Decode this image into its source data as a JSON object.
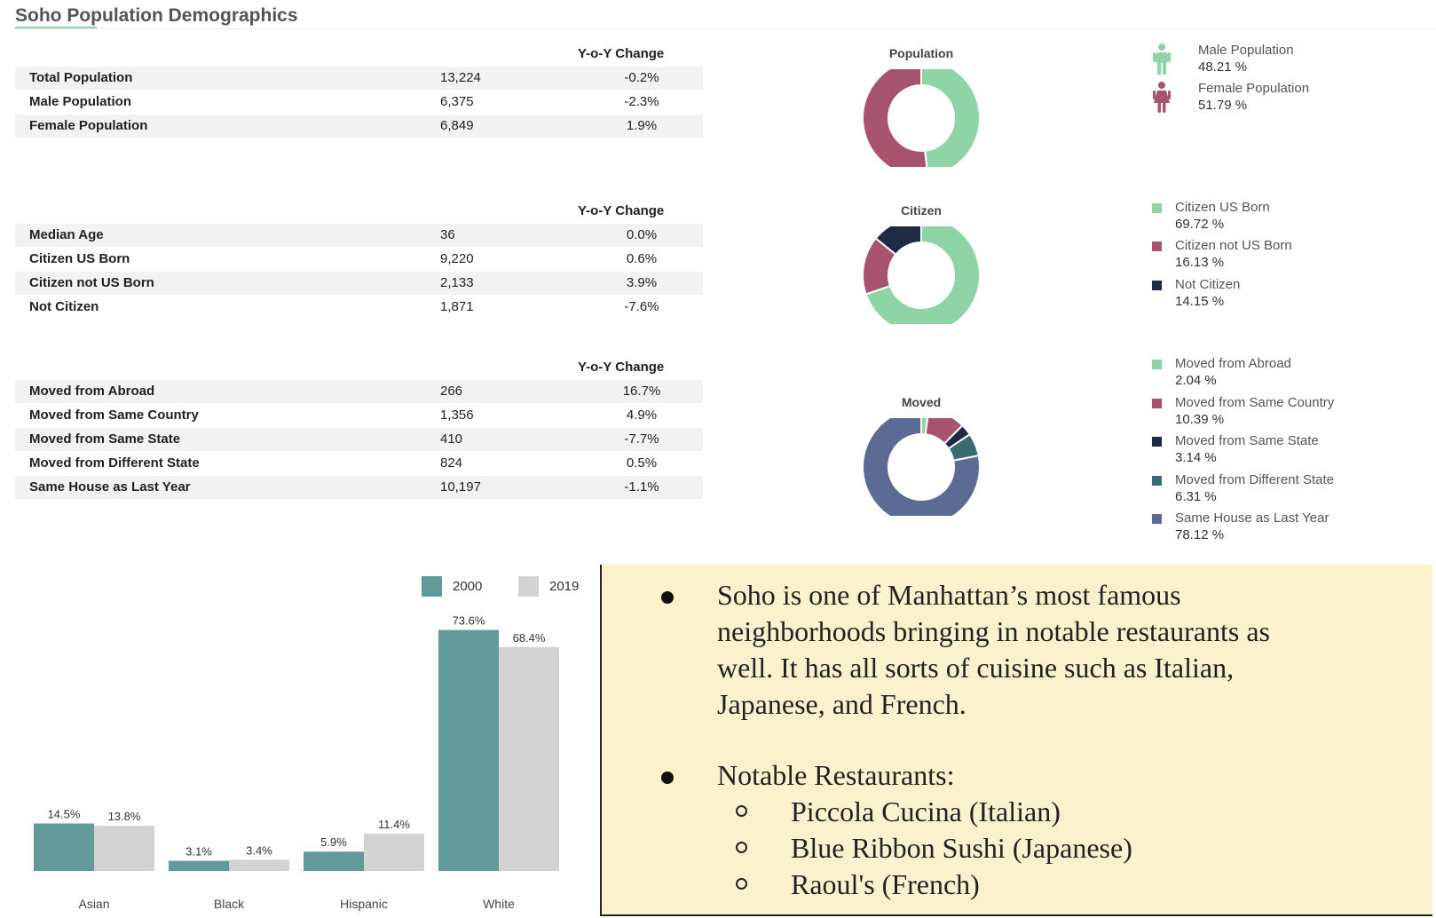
{
  "page_title": "Soho Population Demographics",
  "tables": [
    {
      "yoy_header": "Y-o-Y Change",
      "rows": [
        {
          "label": "Total Population",
          "value": "13,224",
          "change": "-0.2%"
        },
        {
          "label": "Male Population",
          "value": "6,375",
          "change": "-2.3%"
        },
        {
          "label": "Female Population",
          "value": "6,849",
          "change": "1.9%"
        }
      ]
    },
    {
      "yoy_header": "Y-o-Y Change",
      "rows": [
        {
          "label": "Median Age",
          "value": "36",
          "change": "0.0%"
        },
        {
          "label": "Citizen US Born",
          "value": "9,220",
          "change": "0.6%"
        },
        {
          "label": "Citizen not US Born",
          "value": "2,133",
          "change": "3.9%"
        },
        {
          "label": "Not Citizen",
          "value": "1,871",
          "change": "-7.6%"
        }
      ]
    },
    {
      "yoy_header": "Y-o-Y Change",
      "rows": [
        {
          "label": "Moved from Abroad",
          "value": "266",
          "change": "16.7%"
        },
        {
          "label": "Moved from Same Country",
          "value": "1,356",
          "change": "4.9%"
        },
        {
          "label": "Moved from Same State",
          "value": "410",
          "change": "-7.7%"
        },
        {
          "label": "Moved from Different State",
          "value": "824",
          "change": "0.5%"
        },
        {
          "label": "Same House as Last Year",
          "value": "10,197",
          "change": "-1.1%"
        }
      ]
    }
  ],
  "chart_data": [
    {
      "type": "pie",
      "title": "Population",
      "categories": [
        "Male Population",
        "Female Population"
      ],
      "values": [
        48.21,
        51.79
      ],
      "value_labels": [
        "48.21 %",
        "51.79 %"
      ],
      "colors": [
        "#8fd4a6",
        "#a8536d"
      ],
      "icons": [
        "male-person-icon",
        "female-person-icon"
      ],
      "legend_position": "right"
    },
    {
      "type": "pie",
      "title": "Citizen",
      "categories": [
        "Citizen US Born",
        "Citizen not US Born",
        "Not Citizen"
      ],
      "values": [
        69.72,
        16.13,
        14.15
      ],
      "value_labels": [
        "69.72 %",
        "16.13 %",
        "14.15 %"
      ],
      "colors": [
        "#8fd4a6",
        "#a8536d",
        "#1f2a44"
      ],
      "legend_position": "right"
    },
    {
      "type": "pie",
      "title": "Moved",
      "categories": [
        "Moved from Abroad",
        "Moved from Same Country",
        "Moved from Same State",
        "Moved from Different State",
        "Same House as Last Year"
      ],
      "values": [
        2.04,
        10.39,
        3.14,
        6.31,
        78.12
      ],
      "value_labels": [
        "2.04 %",
        "10.39 %",
        "3.14 %",
        "6.31 %",
        "78.12 %"
      ],
      "colors": [
        "#8fd4a6",
        "#a8536d",
        "#1f2a44",
        "#3a6b72",
        "#5b6b94"
      ],
      "legend_position": "right"
    },
    {
      "type": "bar",
      "title": "",
      "categories": [
        "Asian",
        "Black",
        "Hispanic",
        "White"
      ],
      "series": [
        {
          "name": "2000",
          "values": [
            14.5,
            3.1,
            5.9,
            73.6
          ],
          "labels": [
            "14.5%",
            "3.1%",
            "5.9%",
            "73.6%"
          ],
          "color": "#629a9c"
        },
        {
          "name": "2019",
          "values": [
            13.8,
            3.4,
            11.4,
            68.4
          ],
          "labels": [
            "13.8%",
            "3.4%",
            "11.4%",
            "68.4%"
          ],
          "color": "#d3d3d3"
        }
      ],
      "xlabel": "",
      "ylabel": "",
      "ylim": [
        0,
        80
      ],
      "grid": false,
      "legend_position": "top-right"
    }
  ],
  "notes": {
    "bullets": [
      {
        "text_lines": [
          "Soho is one of Manhattan’s most famous",
          "neighborhoods bringing in notable restaurants as",
          "well. It has all sorts of cuisine such as Italian,",
          "Japanese, and French."
        ]
      },
      {
        "text_lines": [
          "Notable Restaurants:"
        ],
        "sub_items": [
          "Piccola Cucina (Italian)",
          "Blue Ribbon Sushi (Japanese)",
          "Raoul's (French)"
        ]
      }
    ]
  }
}
